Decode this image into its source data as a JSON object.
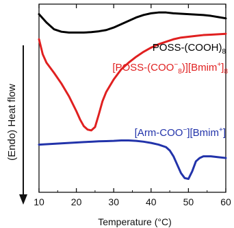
{
  "chart_data": {
    "type": "line",
    "xlabel": "Temperature (°C)",
    "ylabel": "(Endo) Heat flow",
    "xlim": [
      10,
      60
    ],
    "x_ticks": [
      10,
      20,
      30,
      40,
      50,
      60
    ],
    "grid": false,
    "legend": "none (curves labeled inline)",
    "series": [
      {
        "name_parts": {
          "base": "POSS-(COOH)",
          "sub": "8"
        },
        "color": "#000000",
        "x": [
          10,
          12,
          14,
          16,
          18,
          20,
          22,
          24,
          26,
          28,
          30,
          32,
          34,
          36,
          38,
          40,
          42,
          44,
          46,
          48,
          50,
          52,
          54,
          56,
          58,
          60
        ],
        "y": [
          0.88,
          0.78,
          0.7,
          0.67,
          0.66,
          0.66,
          0.66,
          0.665,
          0.675,
          0.69,
          0.72,
          0.76,
          0.8,
          0.84,
          0.87,
          0.89,
          0.9,
          0.9,
          0.89,
          0.885,
          0.88,
          0.875,
          0.87,
          0.86,
          0.845,
          0.83
        ]
      },
      {
        "name_parts": {
          "pre": "[POSS-(COO",
          "pre_sup": "−",
          "pre_sub": "8",
          "mid": ")",
          "post": "][Bmim",
          "post_sup": "+",
          "end": "]",
          "end_sub": "8"
        },
        "color": "#e02020",
        "x": [
          10,
          11,
          12,
          14,
          16,
          18,
          20,
          21,
          22,
          23,
          24,
          25,
          26,
          27,
          28,
          30,
          32,
          34,
          36,
          38,
          40,
          42,
          44,
          46,
          48,
          50,
          52,
          54,
          56,
          58,
          60
        ],
        "y": [
          0.58,
          0.4,
          0.3,
          0.18,
          0.05,
          -0.1,
          -0.28,
          -0.38,
          -0.46,
          -0.5,
          -0.51,
          -0.47,
          -0.32,
          -0.16,
          -0.05,
          0.1,
          0.22,
          0.3,
          0.37,
          0.43,
          0.48,
          0.52,
          0.55,
          0.58,
          0.6,
          0.61,
          0.62,
          0.63,
          0.635,
          0.64,
          0.645
        ]
      },
      {
        "name_parts": {
          "pre": "[Arm-COO",
          "pre_sup": "−",
          "post": "][Bmim",
          "post_sup": "+",
          "end": "]"
        },
        "color": "#2233aa",
        "x": [
          10,
          12,
          14,
          16,
          18,
          20,
          22,
          24,
          26,
          28,
          30,
          32,
          34,
          36,
          38,
          40,
          42,
          44,
          45,
          46,
          47,
          48,
          49,
          50,
          51,
          52,
          53,
          54,
          56,
          58,
          60
        ],
        "y": [
          -0.68,
          -0.675,
          -0.67,
          -0.665,
          -0.66,
          -0.655,
          -0.65,
          -0.645,
          -0.64,
          -0.638,
          -0.635,
          -0.63,
          -0.63,
          -0.635,
          -0.645,
          -0.66,
          -0.68,
          -0.71,
          -0.75,
          -0.82,
          -0.92,
          -1.02,
          -1.08,
          -1.09,
          -1.0,
          -0.88,
          -0.84,
          -0.82,
          -0.82,
          -0.83,
          -0.84
        ]
      }
    ]
  }
}
